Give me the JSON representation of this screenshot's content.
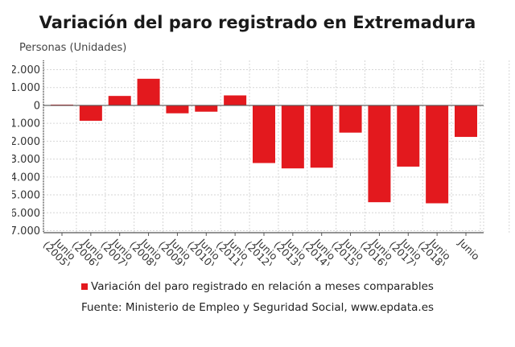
{
  "chart_data": {
    "type": "bar",
    "title": "Variación del paro registrado en Extremadura",
    "ylabel": "Personas (Unidades)",
    "xlabel": "",
    "categories": [
      "Junio (2005)",
      "Junio (2006)",
      "Junio (2007)",
      "Junio (2008)",
      "Junio (2009)",
      "Junio (2010)",
      "Junio (2011)",
      "Junio (2012)",
      "Junio (2013)",
      "Junio (2014)",
      "Junio (2015)",
      "Junio (2016)",
      "Junio (2017)",
      "Junio (2018)",
      "Junio"
    ],
    "series": [
      {
        "name": "Variación del paro registrado en relación a meses comparables",
        "color": "#e3191e",
        "values": [
          45,
          -860,
          530,
          1490,
          -440,
          -350,
          560,
          -3220,
          -3520,
          -3480,
          -1520,
          -5410,
          -3420,
          -5470,
          -1760
        ]
      }
    ],
    "ylim": [
      -7000,
      2000
    ],
    "yticks": [
      2000,
      1000,
      0,
      -1000,
      -2000,
      -3000,
      -4000,
      -5000,
      -6000,
      -7000
    ],
    "ytick_labels": [
      "2.000",
      "1.000",
      "0",
      "-1.000",
      "-2.000",
      "-3.000",
      "-4.000",
      "-5.000",
      "-6.000",
      "-7.000"
    ],
    "grid": true,
    "legend_position": "bottom",
    "source": "Fuente: Ministerio de Empleo y Seguridad Social, www.epdata.es"
  }
}
